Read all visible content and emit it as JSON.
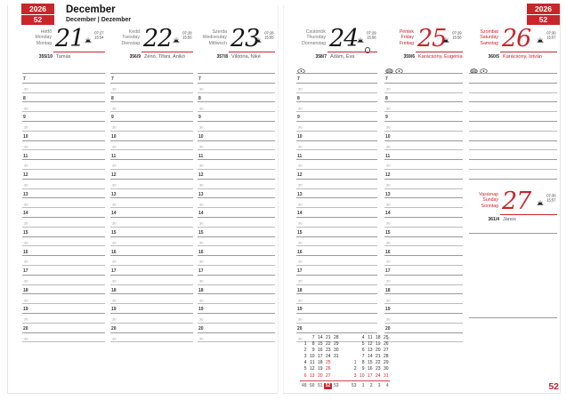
{
  "header": {
    "year": "2026",
    "week": "52",
    "month": "December",
    "subtitle": "December | Dezember"
  },
  "footer": {
    "page_week": "52"
  },
  "schedule": {
    "hours": [
      "7",
      "8",
      "9",
      "10",
      "11",
      "12",
      "13",
      "14",
      "15",
      "16",
      "17",
      "18",
      "19",
      "20"
    ],
    "half_label": "30"
  },
  "days": [
    {
      "name_hu": "Hétfő",
      "name_en": "Monday",
      "name_de": "Montag",
      "number": "21",
      "sunrise": "07:27",
      "sunset": "15:54",
      "day_of_year": "355/10",
      "namedays": "Tamás",
      "red": false,
      "namedays_red": false,
      "moon": "",
      "markers": []
    },
    {
      "name_hu": "Kedd",
      "name_en": "Tuesday",
      "name_de": "Dienstag",
      "number": "22",
      "sunrise": "07:28",
      "sunset": "15:55",
      "day_of_year": "356/9",
      "namedays": "Zénó, Tifani, Anikó",
      "red": false,
      "namedays_red": false,
      "moon": "",
      "markers": []
    },
    {
      "name_hu": "Szerda",
      "name_en": "Wednesday",
      "name_de": "Mittwoch",
      "number": "23",
      "sunrise": "07:28",
      "sunset": "15:55",
      "day_of_year": "357/8",
      "namedays": "Viktória, Niké",
      "red": false,
      "namedays_red": false,
      "moon": "",
      "markers": []
    },
    {
      "name_hu": "Csütörtök",
      "name_en": "Thursday",
      "name_de": "Donnerstag",
      "number": "24",
      "sunrise": "07:29",
      "sunset": "15:56",
      "day_of_year": "358/7",
      "namedays": "Ádám, Éva",
      "red": false,
      "namedays_red": false,
      "moon": "full",
      "markers": [
        "eye"
      ]
    },
    {
      "name_hu": "Péntek",
      "name_en": "Friday",
      "name_de": "Freitag",
      "number": "25",
      "sunrise": "07:29",
      "sunset": "15:56",
      "day_of_year": "359/6",
      "namedays": "Karácsony, Eugénia",
      "red": true,
      "namedays_red": true,
      "moon": "",
      "markers": [
        "hatch",
        "eye"
      ]
    },
    {
      "name_hu": "Szombat",
      "name_en": "Saturday",
      "name_de": "Samstag",
      "number": "26",
      "sunrise": "07:30",
      "sunset": "15:57",
      "day_of_year": "360/5",
      "namedays": "Karácsony, István",
      "red": true,
      "namedays_red": true,
      "moon": "",
      "markers": [
        "hatch",
        "eye"
      ]
    },
    {
      "name_hu": "Vasárnap",
      "name_en": "Sunday",
      "name_de": "Sonntag",
      "number": "27",
      "sunrise": "07:30",
      "sunset": "15:57",
      "day_of_year": "361/4",
      "namedays": "János",
      "red": true,
      "namedays_red": false,
      "moon": "",
      "markers": []
    }
  ],
  "mini_calendar": {
    "month1": {
      "rows": [
        [
          "",
          "7",
          "14",
          "21",
          "28"
        ],
        [
          "1",
          "8",
          "15",
          "22",
          "29"
        ],
        [
          "2",
          "9",
          "16",
          "23",
          "30"
        ],
        [
          "3",
          "10",
          "17",
          "24",
          "31"
        ],
        [
          "4",
          "11",
          "18",
          "25",
          ""
        ],
        [
          "5",
          "12",
          "19",
          "26",
          ""
        ],
        [
          "6",
          "13",
          "20",
          "27",
          ""
        ]
      ],
      "red_cells": [
        [
          4,
          3
        ],
        [
          5,
          3
        ],
        [
          6,
          0
        ],
        [
          6,
          1
        ],
        [
          6,
          2
        ],
        [
          6,
          3
        ]
      ]
    },
    "month2": {
      "rows": [
        [
          "",
          "4",
          "11",
          "18",
          "25"
        ],
        [
          "",
          "5",
          "12",
          "19",
          "26"
        ],
        [
          "",
          "6",
          "13",
          "20",
          "27"
        ],
        [
          "",
          "7",
          "14",
          "21",
          "28"
        ],
        [
          "1",
          "8",
          "15",
          "22",
          "29"
        ],
        [
          "2",
          "9",
          "16",
          "23",
          "30"
        ],
        [
          "3",
          "10",
          "17",
          "24",
          "31"
        ]
      ],
      "red_cells": [
        [
          4,
          0
        ],
        [
          6,
          0
        ],
        [
          6,
          1
        ],
        [
          6,
          2
        ],
        [
          6,
          3
        ],
        [
          6,
          4
        ]
      ]
    },
    "week_numbers_1": [
      "49",
      "50",
      "51",
      "52",
      "53"
    ],
    "week_numbers_2": [
      "53",
      "1",
      "2",
      "3",
      "4"
    ],
    "current_week": "52"
  },
  "colors": {
    "accent_red": "#c9252b"
  }
}
